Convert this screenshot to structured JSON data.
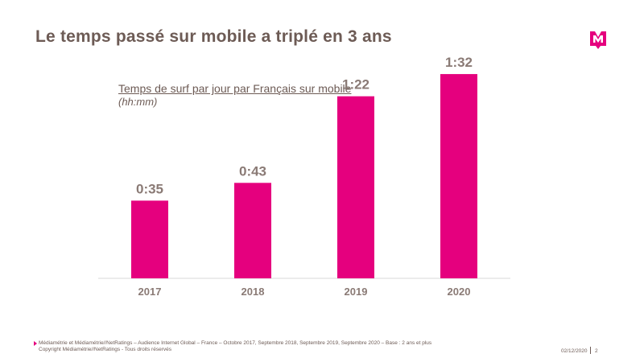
{
  "slide": {
    "title": "Le temps passé sur mobile a triplé en 3 ans"
  },
  "logo": {
    "name": "mediametrie-logo",
    "color": "#e5007e"
  },
  "chart_data": {
    "type": "bar",
    "title": "Temps de surf par jour par Français sur mobile",
    "subtitle": "(hh:mm)",
    "categories": [
      "2017",
      "2018",
      "2019",
      "2020"
    ],
    "values": [
      35,
      43,
      82,
      92
    ],
    "value_labels": [
      "0:35",
      "0:43",
      "1:22",
      "1:32"
    ],
    "unit": "minutes",
    "ylim": [
      0,
      100
    ],
    "grid": false,
    "legend": "none",
    "bar_color": "#e5007e",
    "label_color": "#8a7a75",
    "axis_color": "#d9d9d9"
  },
  "footer": {
    "source_line1": "Médiamétrie et Médiamétrie//NetRatings – Audience Internet Global – France – Octobre 2017, Septembre 2018, Septembre 2019, Septembre 2020 – Base : 2 ans et plus",
    "source_line2": "Copyright Médiamétrie//NetRatings - Tous droits réservés",
    "date": "02/12/2020",
    "page": "2"
  }
}
